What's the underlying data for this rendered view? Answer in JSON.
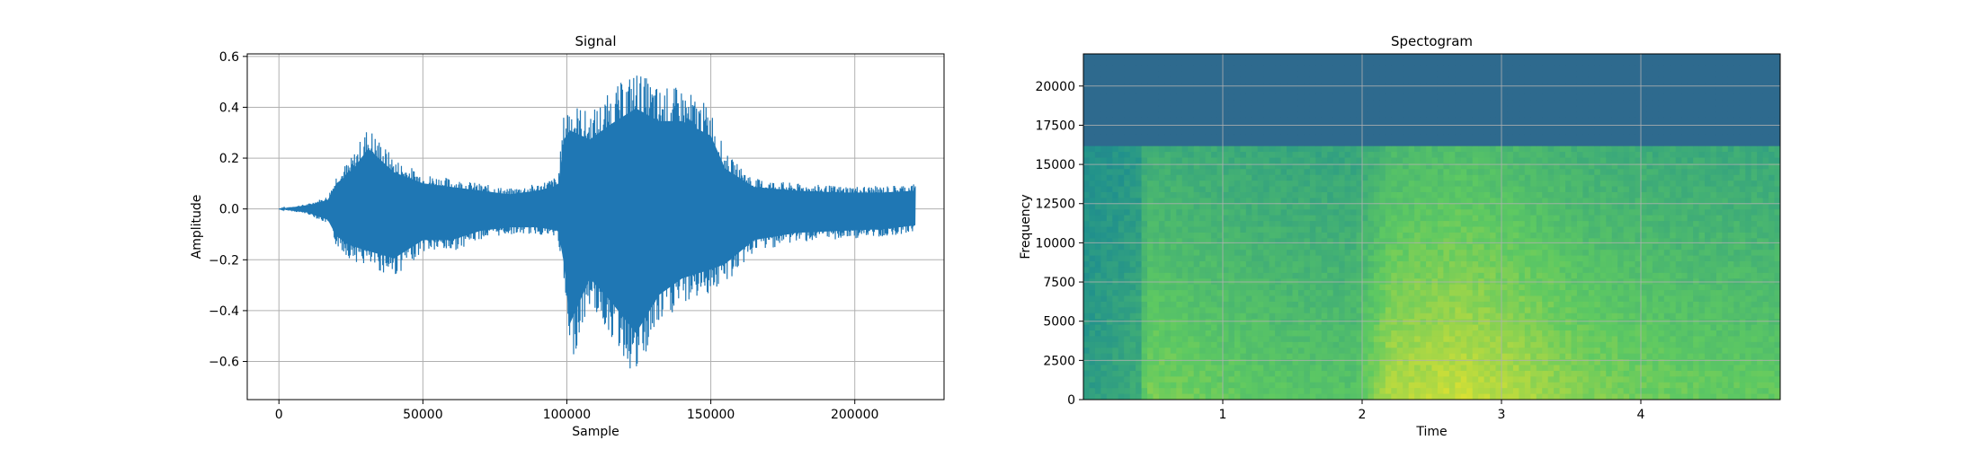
{
  "chart_data": [
    {
      "type": "line",
      "title": "Signal",
      "xlabel": "Sample",
      "ylabel": "Amplitude",
      "xlim": [
        -11000,
        231000
      ],
      "ylim": [
        -0.75,
        0.61
      ],
      "xticks": [
        0,
        50000,
        100000,
        150000,
        200000
      ],
      "xtick_labels": [
        "0",
        "50000",
        "100000",
        "150000",
        "200000"
      ],
      "yticks": [
        -0.6,
        -0.4,
        -0.2,
        0.0,
        0.2,
        0.4,
        0.6
      ],
      "ytick_labels": [
        "−0.6",
        "−0.4",
        "−0.2",
        "0.0",
        "0.2",
        "0.4",
        "0.6"
      ],
      "grid": true,
      "series": [
        {
          "color": "#1f77b4",
          "envelope_points": [
            {
              "x": 0,
              "upper": 0.0,
              "lower": 0.0
            },
            {
              "x": 10000,
              "upper": 0.02,
              "lower": -0.02
            },
            {
              "x": 17000,
              "upper": 0.05,
              "lower": -0.06
            },
            {
              "x": 20000,
              "upper": 0.14,
              "lower": -0.15
            },
            {
              "x": 25000,
              "upper": 0.2,
              "lower": -0.2
            },
            {
              "x": 31000,
              "upper": 0.33,
              "lower": -0.23
            },
            {
              "x": 40000,
              "upper": 0.2,
              "lower": -0.27
            },
            {
              "x": 50000,
              "upper": 0.14,
              "lower": -0.17
            },
            {
              "x": 60000,
              "upper": 0.12,
              "lower": -0.17
            },
            {
              "x": 70000,
              "upper": 0.1,
              "lower": -0.12
            },
            {
              "x": 80000,
              "upper": 0.08,
              "lower": -0.1
            },
            {
              "x": 90000,
              "upper": 0.1,
              "lower": -0.1
            },
            {
              "x": 97000,
              "upper": 0.13,
              "lower": -0.12
            },
            {
              "x": 99000,
              "upper": 0.38,
              "lower": -0.3
            },
            {
              "x": 101000,
              "upper": 0.43,
              "lower": -0.63
            },
            {
              "x": 108000,
              "upper": 0.38,
              "lower": -0.38
            },
            {
              "x": 115000,
              "upper": 0.46,
              "lower": -0.5
            },
            {
              "x": 124000,
              "upper": 0.55,
              "lower": -0.68
            },
            {
              "x": 132000,
              "upper": 0.48,
              "lower": -0.47
            },
            {
              "x": 140000,
              "upper": 0.48,
              "lower": -0.38
            },
            {
              "x": 150000,
              "upper": 0.4,
              "lower": -0.33
            },
            {
              "x": 155000,
              "upper": 0.22,
              "lower": -0.3
            },
            {
              "x": 165000,
              "upper": 0.12,
              "lower": -0.17
            },
            {
              "x": 180000,
              "upper": 0.1,
              "lower": -0.13
            },
            {
              "x": 195000,
              "upper": 0.09,
              "lower": -0.12
            },
            {
              "x": 210000,
              "upper": 0.09,
              "lower": -0.11
            },
            {
              "x": 221000,
              "upper": 0.1,
              "lower": -0.09
            }
          ]
        }
      ]
    },
    {
      "type": "heatmap",
      "title": "Spectogram",
      "xlabel": "Time",
      "ylabel": "Frequency",
      "xlim": [
        0,
        5.0
      ],
      "ylim": [
        0,
        22050
      ],
      "xticks": [
        1,
        2,
        3,
        4
      ],
      "xtick_labels": [
        "1",
        "2",
        "3",
        "4"
      ],
      "yticks": [
        0,
        2500,
        5000,
        7500,
        10000,
        12500,
        15000,
        17500,
        20000
      ],
      "ytick_labels": [
        "0",
        "2500",
        "5000",
        "7500",
        "10000",
        "12500",
        "15000",
        "17500",
        "20000"
      ],
      "grid": true,
      "colormap": "viridis",
      "cutoff_frequency": 16000,
      "above_cutoff_color": "#2e6a8e",
      "time_energy_profile": [
        {
          "t": 0.0,
          "energy": 0.25
        },
        {
          "t": 0.4,
          "energy": 0.4
        },
        {
          "t": 0.45,
          "energy": 0.75
        },
        {
          "t": 1.0,
          "energy": 0.68
        },
        {
          "t": 1.5,
          "energy": 0.62
        },
        {
          "t": 1.95,
          "energy": 0.6
        },
        {
          "t": 2.2,
          "energy": 0.92
        },
        {
          "t": 2.7,
          "energy": 1.0
        },
        {
          "t": 3.1,
          "energy": 0.92
        },
        {
          "t": 3.6,
          "energy": 0.78
        },
        {
          "t": 4.2,
          "energy": 0.7
        },
        {
          "t": 5.0,
          "energy": 0.66
        }
      ]
    }
  ]
}
